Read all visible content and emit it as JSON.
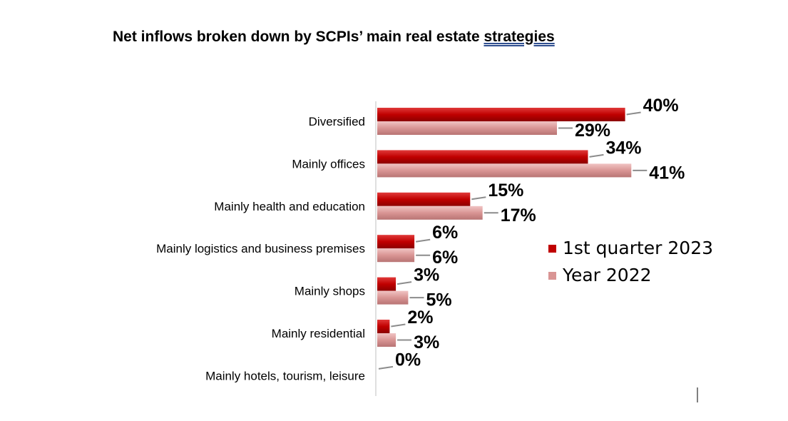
{
  "chart_data": {
    "type": "bar",
    "orientation": "horizontal",
    "title": "Net inflows broken down by SCPIs’ main real estate strategies",
    "categories": [
      "Diversified",
      "Mainly offices",
      "Mainly health and education",
      "Mainly logistics and business premises",
      "Mainly shops",
      "Mainly residential",
      "Mainly hotels, tourism, leisure"
    ],
    "series": [
      {
        "name": "1st quarter 2023",
        "color": "#c00000",
        "values": [
          40,
          34,
          15,
          6,
          3,
          2,
          0
        ],
        "labels": [
          "40%",
          "34%",
          "15%",
          "6%",
          "3%",
          "2%",
          "0%"
        ]
      },
      {
        "name": "Year 2022",
        "color": "#d99594",
        "values": [
          29,
          41,
          17,
          6,
          5,
          3,
          null
        ],
        "labels": [
          "29%",
          "41%",
          "17%",
          "6%",
          "5%",
          "3%",
          ""
        ]
      }
    ],
    "unit": "%",
    "xlim": [
      0,
      41
    ],
    "grid": false,
    "legend": "right"
  }
}
